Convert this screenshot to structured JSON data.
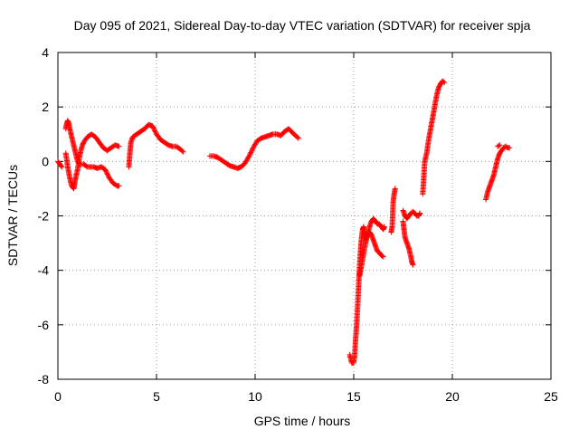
{
  "chart_data": {
    "type": "scatter",
    "title": "Day 095 of 2021, Sidereal Day-to-day VTEC variation (SDTVAR) for receiver spja",
    "xlabel": "GPS time / hours",
    "ylabel": "SDTVAR / TECUs",
    "xlim": [
      0,
      25
    ],
    "ylim": [
      -8,
      4
    ],
    "xticks": [
      0,
      5,
      10,
      15,
      20,
      25
    ],
    "yticks": [
      -8,
      -6,
      -4,
      -2,
      0,
      2,
      4
    ],
    "xtick_labels": [
      "0",
      "5",
      "10",
      "15",
      "20",
      "25"
    ],
    "ytick_labels": [
      "-8",
      "-6",
      "-4",
      "-2",
      "0",
      "2",
      "4"
    ],
    "grid": true,
    "marker": "+",
    "marker_color": "#ff0000",
    "segments": [
      {
        "name": "arc-a",
        "points": [
          [
            0.0,
            0.0
          ],
          [
            0.1,
            -0.1
          ],
          [
            0.2,
            -0.2
          ]
        ]
      },
      {
        "name": "arc-b",
        "points": [
          [
            0.4,
            1.2
          ],
          [
            0.45,
            1.4
          ],
          [
            0.5,
            1.5
          ],
          [
            0.55,
            1.4
          ],
          [
            0.6,
            1.2
          ],
          [
            0.7,
            0.9
          ],
          [
            0.8,
            0.6
          ],
          [
            0.9,
            0.3
          ],
          [
            1.0,
            0.0
          ],
          [
            1.1,
            -0.1
          ],
          [
            1.3,
            -0.1
          ],
          [
            1.5,
            -0.2
          ],
          [
            1.8,
            -0.2
          ],
          [
            2.0,
            -0.25
          ],
          [
            2.2,
            -0.2
          ],
          [
            2.4,
            -0.3
          ],
          [
            2.6,
            -0.6
          ],
          [
            2.8,
            -0.8
          ],
          [
            3.0,
            -0.9
          ],
          [
            3.1,
            -0.9
          ]
        ]
      },
      {
        "name": "arc-c",
        "points": [
          [
            0.4,
            0.3
          ],
          [
            0.5,
            -0.2
          ],
          [
            0.6,
            -0.6
          ],
          [
            0.7,
            -0.9
          ],
          [
            0.8,
            -1.0
          ],
          [
            0.85,
            -0.8
          ],
          [
            0.9,
            -0.6
          ],
          [
            1.0,
            -0.3
          ],
          [
            1.1,
            0.2
          ],
          [
            1.2,
            0.5
          ],
          [
            1.3,
            0.7
          ],
          [
            1.5,
            0.9
          ],
          [
            1.7,
            1.0
          ],
          [
            1.9,
            0.9
          ],
          [
            2.1,
            0.7
          ],
          [
            2.3,
            0.5
          ],
          [
            2.5,
            0.4
          ],
          [
            2.7,
            0.5
          ],
          [
            2.9,
            0.6
          ],
          [
            3.1,
            0.55
          ]
        ]
      },
      {
        "name": "arc-d",
        "points": [
          [
            3.6,
            -0.2
          ],
          [
            3.65,
            0.3
          ],
          [
            3.7,
            0.7
          ],
          [
            3.8,
            0.9
          ],
          [
            4.0,
            1.0
          ],
          [
            4.2,
            1.1
          ],
          [
            4.4,
            1.2
          ],
          [
            4.6,
            1.35
          ],
          [
            4.8,
            1.3
          ],
          [
            5.0,
            1.0
          ],
          [
            5.2,
            0.8
          ],
          [
            5.4,
            0.7
          ],
          [
            5.6,
            0.6
          ],
          [
            5.8,
            0.55
          ],
          [
            6.0,
            0.55
          ],
          [
            6.2,
            0.45
          ],
          [
            6.35,
            0.35
          ]
        ]
      },
      {
        "name": "arc-e",
        "points": [
          [
            7.7,
            0.2
          ],
          [
            7.9,
            0.2
          ],
          [
            8.1,
            0.15
          ],
          [
            8.3,
            0.05
          ],
          [
            8.5,
            -0.05
          ],
          [
            8.7,
            -0.15
          ],
          [
            8.9,
            -0.2
          ],
          [
            9.1,
            -0.25
          ],
          [
            9.3,
            -0.2
          ],
          [
            9.5,
            -0.05
          ],
          [
            9.7,
            0.2
          ],
          [
            9.9,
            0.5
          ],
          [
            10.1,
            0.75
          ],
          [
            10.3,
            0.85
          ],
          [
            10.5,
            0.9
          ],
          [
            10.7,
            0.95
          ],
          [
            10.9,
            1.0
          ],
          [
            11.1,
            1.0
          ],
          [
            11.3,
            0.95
          ],
          [
            11.5,
            1.1
          ],
          [
            11.7,
            1.2
          ],
          [
            11.9,
            1.05
          ],
          [
            12.05,
            0.95
          ],
          [
            12.2,
            0.85
          ]
        ]
      },
      {
        "name": "arc-f",
        "points": [
          [
            14.8,
            -7.1
          ],
          [
            14.9,
            -7.4
          ],
          [
            15.0,
            -7.4
          ],
          [
            15.05,
            -7.1
          ],
          [
            15.1,
            -6.5
          ],
          [
            15.15,
            -6.0
          ],
          [
            15.2,
            -5.3
          ],
          [
            15.25,
            -4.5
          ],
          [
            15.3,
            -3.8
          ],
          [
            15.35,
            -3.2
          ],
          [
            15.4,
            -2.8
          ],
          [
            15.45,
            -2.5
          ],
          [
            15.5,
            -2.4
          ],
          [
            15.55,
            -2.6
          ],
          [
            15.6,
            -2.9
          ],
          [
            15.7,
            -2.7
          ],
          [
            15.8,
            -2.4
          ],
          [
            15.9,
            -2.2
          ],
          [
            16.0,
            -2.1
          ],
          [
            16.1,
            -2.2
          ],
          [
            16.2,
            -2.3
          ],
          [
            16.3,
            -2.3
          ],
          [
            16.4,
            -2.4
          ],
          [
            16.5,
            -2.5
          ],
          [
            16.55,
            -2.4
          ]
        ]
      },
      {
        "name": "arc-g",
        "points": [
          [
            15.3,
            -4.2
          ],
          [
            15.4,
            -3.8
          ],
          [
            15.5,
            -3.4
          ],
          [
            15.6,
            -3.0
          ],
          [
            15.7,
            -2.7
          ],
          [
            15.8,
            -2.6
          ],
          [
            15.9,
            -2.7
          ],
          [
            16.0,
            -2.9
          ],
          [
            16.1,
            -3.1
          ],
          [
            16.2,
            -3.3
          ],
          [
            16.3,
            -3.35
          ],
          [
            16.4,
            -3.45
          ],
          [
            16.5,
            -3.5
          ]
        ]
      },
      {
        "name": "arc-h",
        "points": [
          [
            16.9,
            -2.6
          ],
          [
            16.95,
            -2.4
          ],
          [
            17.0,
            -1.5
          ],
          [
            17.05,
            -1.2
          ],
          [
            17.1,
            -1.0
          ]
        ]
      },
      {
        "name": "arc-i",
        "points": [
          [
            17.5,
            -2.2
          ],
          [
            17.55,
            -2.5
          ],
          [
            17.6,
            -2.8
          ],
          [
            17.7,
            -3.0
          ],
          [
            17.8,
            -3.2
          ],
          [
            17.9,
            -3.5
          ],
          [
            17.95,
            -3.7
          ],
          [
            18.0,
            -3.8
          ]
        ]
      },
      {
        "name": "arc-j",
        "points": [
          [
            17.5,
            -1.8
          ],
          [
            17.6,
            -2.0
          ],
          [
            17.7,
            -2.1
          ],
          [
            17.8,
            -2.0
          ],
          [
            17.9,
            -1.9
          ],
          [
            18.0,
            -1.85
          ],
          [
            18.1,
            -1.9
          ],
          [
            18.2,
            -2.0
          ],
          [
            18.3,
            -2.0
          ],
          [
            18.35,
            -1.9
          ]
        ]
      },
      {
        "name": "arc-k",
        "points": [
          [
            18.5,
            -1.2
          ],
          [
            18.6,
            0.0
          ],
          [
            18.7,
            0.3
          ],
          [
            18.8,
            0.8
          ],
          [
            18.9,
            1.2
          ],
          [
            19.0,
            1.6
          ],
          [
            19.1,
            2.0
          ],
          [
            19.2,
            2.4
          ],
          [
            19.3,
            2.7
          ],
          [
            19.4,
            2.85
          ],
          [
            19.5,
            2.95
          ],
          [
            19.6,
            2.9
          ]
        ]
      },
      {
        "name": "arc-l",
        "points": [
          [
            21.7,
            -1.4
          ],
          [
            21.8,
            -1.1
          ],
          [
            21.9,
            -0.9
          ],
          [
            22.0,
            -0.7
          ],
          [
            22.1,
            -0.5
          ],
          [
            22.2,
            -0.2
          ],
          [
            22.3,
            0.1
          ],
          [
            22.4,
            0.3
          ],
          [
            22.5,
            0.4
          ],
          [
            22.6,
            0.5
          ],
          [
            22.7,
            0.55
          ],
          [
            22.8,
            0.5
          ],
          [
            22.9,
            0.5
          ]
        ]
      },
      {
        "name": "arc-m",
        "points": [
          [
            22.3,
            0.55
          ],
          [
            22.4,
            0.6
          ]
        ]
      }
    ]
  }
}
